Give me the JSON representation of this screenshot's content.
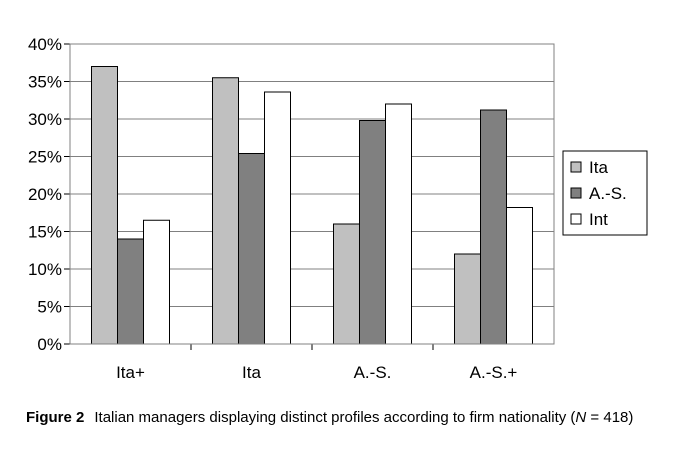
{
  "chart_data": {
    "type": "bar",
    "categories": [
      "Ita+",
      "Ita",
      "A.-S.",
      "A.-S.+"
    ],
    "series": [
      {
        "name": "Ita",
        "values": [
          37.0,
          35.5,
          16.0,
          12.0
        ],
        "color": "#c0c0c0"
      },
      {
        "name": "A.-S.",
        "values": [
          14.0,
          25.4,
          29.8,
          31.2
        ],
        "color": "#808080"
      },
      {
        "name": "Int",
        "values": [
          16.5,
          33.6,
          32.0,
          18.2
        ],
        "color": "#ffffff"
      }
    ],
    "ylim": [
      0,
      40
    ],
    "yticks": [
      "0%",
      "5%",
      "10%",
      "15%",
      "20%",
      "25%",
      "30%",
      "35%",
      "40%"
    ],
    "grid": true,
    "legend_position": "right",
    "xlabel": "",
    "ylabel": ""
  },
  "caption": {
    "label": "Figure 2",
    "text_before": "Italian managers displaying distinct profiles according to firm nationality (",
    "n_symbol": "N",
    "text_after": " = 418)"
  }
}
